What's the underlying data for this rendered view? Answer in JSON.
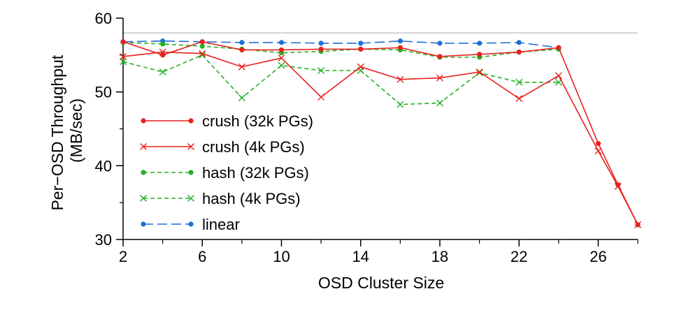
{
  "chart_data": {
    "type": "line",
    "title": "",
    "xlabel": "OSD Cluster Size",
    "ylabel_lines": [
      "Per−OSD Throughput",
      "(MB/sec)"
    ],
    "xlim": [
      2,
      28
    ],
    "ylim": [
      30,
      60
    ],
    "x_ticks": [
      2,
      6,
      10,
      14,
      18,
      22,
      26
    ],
    "x_ticks_minor": [
      4,
      8,
      12,
      16,
      20,
      24,
      28
    ],
    "y_ticks": [
      30,
      40,
      50,
      60
    ],
    "reference_line_y": 58,
    "legend_position": "left",
    "series": [
      {
        "name": "crush (32k PGs)",
        "color": "#e8211d",
        "line_style": "solid",
        "marker": "dot",
        "x": [
          2,
          4,
          6,
          8,
          10,
          12,
          14,
          16,
          18,
          20,
          22,
          24,
          26,
          27,
          28
        ],
        "y": [
          56.8,
          55.0,
          56.8,
          55.7,
          55.7,
          55.8,
          55.8,
          56.0,
          54.8,
          55.1,
          55.4,
          56.0,
          43.0,
          37.4,
          32.0
        ]
      },
      {
        "name": "crush (4k PGs)",
        "color": "#e8211d",
        "line_style": "solid",
        "marker": "cross",
        "x": [
          2,
          4,
          6,
          8,
          10,
          12,
          14,
          16,
          18,
          20,
          22,
          24,
          26,
          27,
          28
        ],
        "y": [
          54.8,
          55.4,
          55.2,
          53.4,
          54.6,
          49.3,
          53.4,
          51.7,
          51.9,
          52.7,
          49.1,
          52.2,
          42.0,
          37.2,
          32.0
        ]
      },
      {
        "name": "hash (32k PGs)",
        "color": "#22b022",
        "line_style": "dashed",
        "marker": "dot",
        "x": [
          2,
          4,
          6,
          8,
          10,
          12,
          14,
          16,
          18,
          20,
          22,
          24
        ],
        "y": [
          56.7,
          56.5,
          56.2,
          55.8,
          55.3,
          55.5,
          55.8,
          55.7,
          54.7,
          54.7,
          55.4,
          55.8
        ]
      },
      {
        "name": "hash (4k PGs)",
        "color": "#22b022",
        "line_style": "dashed",
        "marker": "cross",
        "x": [
          2,
          4,
          6,
          8,
          10,
          12,
          14,
          16,
          18,
          20,
          22,
          24
        ],
        "y": [
          54.1,
          52.7,
          55.0,
          49.2,
          53.6,
          52.9,
          52.9,
          48.3,
          48.5,
          52.6,
          51.3,
          51.3
        ]
      },
      {
        "name": "linear",
        "color": "#1f6fd8",
        "line_style": "longdash",
        "marker": "dot",
        "x": [
          2,
          4,
          6,
          8,
          10,
          12,
          14,
          16,
          18,
          20,
          22,
          24
        ],
        "y": [
          56.8,
          56.9,
          56.8,
          56.7,
          56.7,
          56.6,
          56.6,
          56.9,
          56.6,
          56.6,
          56.7,
          56.0
        ]
      }
    ]
  }
}
